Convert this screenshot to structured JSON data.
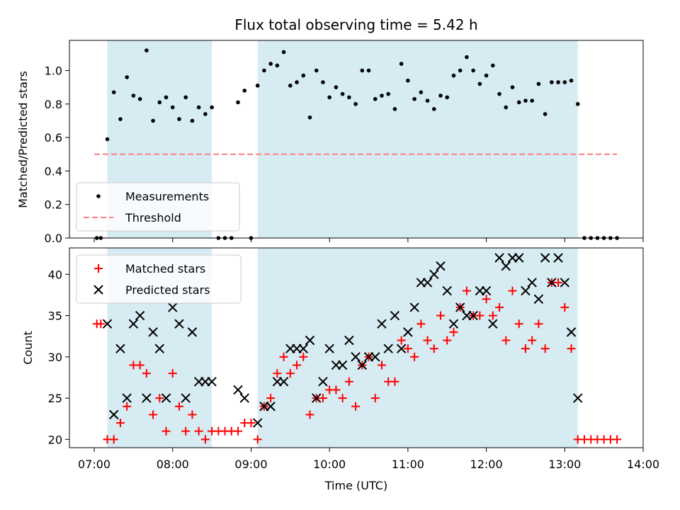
{
  "chart_data": {
    "type": "scatter",
    "title": "Flux total observing time = 5.42 h",
    "xlabel": "Time (UTC)",
    "x_ticks": [
      "07:00",
      "08:00",
      "09:00",
      "10:00",
      "11:00",
      "12:00",
      "13:00",
      "14:00"
    ],
    "xlim": [
      "06:41",
      "14:00"
    ],
    "shaded_intervals": [
      [
        "07:10",
        "08:30"
      ],
      [
        "09:05",
        "13:10"
      ]
    ],
    "shade_color": "#add8e6",
    "panels": [
      {
        "ylabel": "Matched/Predicted stars",
        "ylim": [
          0,
          1.18
        ],
        "y_ticks": [
          "0.0",
          "0.2",
          "0.4",
          "0.6",
          "0.8",
          "1.0"
        ],
        "threshold": {
          "name": "Threshold",
          "value": 0.5,
          "x_range": [
            "07:00",
            "13:40"
          ],
          "color": "#ff7f7f"
        },
        "series": [
          {
            "name": "Measurements",
            "marker": "dot",
            "color": "#000000",
            "points": [
              [
                "07:02",
                0
              ],
              [
                "07:05",
                0
              ],
              [
                "07:10",
                0.59
              ],
              [
                "07:15",
                0.87
              ],
              [
                "07:20",
                0.71
              ],
              [
                "07:25",
                0.96
              ],
              [
                "07:30",
                0.85
              ],
              [
                "07:35",
                0.83
              ],
              [
                "07:40",
                1.12
              ],
              [
                "07:45",
                0.7
              ],
              [
                "07:50",
                0.81
              ],
              [
                "07:55",
                0.84
              ],
              [
                "08:00",
                0.78
              ],
              [
                "08:05",
                0.71
              ],
              [
                "08:10",
                0.84
              ],
              [
                "08:15",
                0.7
              ],
              [
                "08:20",
                0.78
              ],
              [
                "08:25",
                0.74
              ],
              [
                "08:30",
                0.78
              ],
              [
                "08:35",
                0
              ],
              [
                "08:40",
                0
              ],
              [
                "08:45",
                0
              ],
              [
                "08:50",
                0.81
              ],
              [
                "08:55",
                0.88
              ],
              [
                "09:00",
                0
              ],
              [
                "09:05",
                0.91
              ],
              [
                "09:10",
                1.0
              ],
              [
                "09:15",
                1.04
              ],
              [
                "09:20",
                1.03
              ],
              [
                "09:25",
                1.11
              ],
              [
                "09:30",
                0.91
              ],
              [
                "09:35",
                0.93
              ],
              [
                "09:40",
                0.97
              ],
              [
                "09:45",
                0.72
              ],
              [
                "09:50",
                1.0
              ],
              [
                "09:55",
                0.93
              ],
              [
                "10:00",
                0.84
              ],
              [
                "10:05",
                0.9
              ],
              [
                "10:10",
                0.86
              ],
              [
                "10:15",
                0.84
              ],
              [
                "10:20",
                0.8
              ],
              [
                "10:25",
                1.0
              ],
              [
                "10:30",
                1.0
              ],
              [
                "10:35",
                0.83
              ],
              [
                "10:40",
                0.85
              ],
              [
                "10:45",
                0.86
              ],
              [
                "10:50",
                0.77
              ],
              [
                "10:55",
                1.04
              ],
              [
                "11:00",
                0.94
              ],
              [
                "11:05",
                0.83
              ],
              [
                "11:10",
                0.87
              ],
              [
                "11:15",
                0.82
              ],
              [
                "11:20",
                0.77
              ],
              [
                "11:25",
                0.85
              ],
              [
                "11:30",
                0.84
              ],
              [
                "11:35",
                0.97
              ],
              [
                "11:40",
                1.0
              ],
              [
                "11:45",
                1.08
              ],
              [
                "11:50",
                1.0
              ],
              [
                "11:55",
                0.92
              ],
              [
                "12:00",
                0.97
              ],
              [
                "12:05",
                1.03
              ],
              [
                "12:10",
                0.86
              ],
              [
                "12:15",
                0.78
              ],
              [
                "12:20",
                0.9
              ],
              [
                "12:25",
                0.81
              ],
              [
                "12:30",
                0.82
              ],
              [
                "12:35",
                0.82
              ],
              [
                "12:40",
                0.92
              ],
              [
                "12:45",
                0.74
              ],
              [
                "12:50",
                0.93
              ],
              [
                "12:55",
                0.93
              ],
              [
                "13:00",
                0.93
              ],
              [
                "13:05",
                0.94
              ],
              [
                "13:10",
                0.8
              ],
              [
                "13:15",
                0
              ],
              [
                "13:20",
                0
              ],
              [
                "13:25",
                0
              ],
              [
                "13:30",
                0
              ],
              [
                "13:35",
                0
              ],
              [
                "13:40",
                0
              ]
            ]
          }
        ],
        "legend": "lower-left"
      },
      {
        "ylabel": "Count",
        "ylim": [
          19,
          43.2
        ],
        "y_ticks": [
          "20",
          "25",
          "30",
          "35",
          "40"
        ],
        "series": [
          {
            "name": "Matched stars",
            "marker": "plus",
            "color": "#ff0000",
            "points": [
              [
                "07:02",
                34
              ],
              [
                "07:05",
                34
              ],
              [
                "07:10",
                20
              ],
              [
                "07:15",
                20
              ],
              [
                "07:20",
                22
              ],
              [
                "07:25",
                24
              ],
              [
                "07:30",
                29
              ],
              [
                "07:35",
                29
              ],
              [
                "07:40",
                28
              ],
              [
                "07:45",
                23
              ],
              [
                "07:50",
                25
              ],
              [
                "07:55",
                21
              ],
              [
                "08:00",
                28
              ],
              [
                "08:05",
                24
              ],
              [
                "08:10",
                21
              ],
              [
                "08:15",
                23
              ],
              [
                "08:20",
                21
              ],
              [
                "08:25",
                20
              ],
              [
                "08:30",
                21
              ],
              [
                "08:35",
                21
              ],
              [
                "08:40",
                21
              ],
              [
                "08:45",
                21
              ],
              [
                "08:50",
                21
              ],
              [
                "08:55",
                22
              ],
              [
                "09:00",
                22
              ],
              [
                "09:05",
                20
              ],
              [
                "09:10",
                24
              ],
              [
                "09:15",
                25
              ],
              [
                "09:20",
                28
              ],
              [
                "09:25",
                30
              ],
              [
                "09:30",
                28
              ],
              [
                "09:35",
                29
              ],
              [
                "09:40",
                30
              ],
              [
                "09:45",
                23
              ],
              [
                "09:50",
                25
              ],
              [
                "09:55",
                25
              ],
              [
                "10:00",
                26
              ],
              [
                "10:05",
                26
              ],
              [
                "10:10",
                25
              ],
              [
                "10:15",
                27
              ],
              [
                "10:20",
                24
              ],
              [
                "10:25",
                29
              ],
              [
                "10:30",
                30
              ],
              [
                "10:35",
                25
              ],
              [
                "10:40",
                29
              ],
              [
                "10:45",
                27
              ],
              [
                "10:50",
                27
              ],
              [
                "10:55",
                32
              ],
              [
                "11:00",
                31
              ],
              [
                "11:05",
                30
              ],
              [
                "11:10",
                34
              ],
              [
                "11:15",
                32
              ],
              [
                "11:20",
                31
              ],
              [
                "11:25",
                35
              ],
              [
                "11:30",
                32
              ],
              [
                "11:35",
                33
              ],
              [
                "11:40",
                36
              ],
              [
                "11:45",
                38
              ],
              [
                "11:50",
                35
              ],
              [
                "11:55",
                35
              ],
              [
                "12:00",
                37
              ],
              [
                "12:05",
                35
              ],
              [
                "12:10",
                36
              ],
              [
                "12:15",
                32
              ],
              [
                "12:20",
                38
              ],
              [
                "12:25",
                34
              ],
              [
                "12:30",
                31
              ],
              [
                "12:35",
                32
              ],
              [
                "12:40",
                34
              ],
              [
                "12:45",
                31
              ],
              [
                "12:50",
                39
              ],
              [
                "12:55",
                39
              ],
              [
                "13:00",
                36
              ],
              [
                "13:05",
                31
              ],
              [
                "13:10",
                20
              ],
              [
                "13:15",
                20
              ],
              [
                "13:20",
                20
              ],
              [
                "13:25",
                20
              ],
              [
                "13:30",
                20
              ],
              [
                "13:35",
                20
              ],
              [
                "13:40",
                20
              ]
            ]
          },
          {
            "name": "Predicted stars",
            "marker": "x",
            "color": "#000000",
            "points": [
              [
                "07:10",
                34
              ],
              [
                "07:15",
                23
              ],
              [
                "07:20",
                31
              ],
              [
                "07:25",
                25
              ],
              [
                "07:30",
                34
              ],
              [
                "07:35",
                35
              ],
              [
                "07:40",
                25
              ],
              [
                "07:45",
                33
              ],
              [
                "07:50",
                31
              ],
              [
                "07:55",
                25
              ],
              [
                "08:00",
                36
              ],
              [
                "08:05",
                34
              ],
              [
                "08:10",
                25
              ],
              [
                "08:15",
                33
              ],
              [
                "08:20",
                27
              ],
              [
                "08:25",
                27
              ],
              [
                "08:30",
                27
              ],
              [
                "08:50",
                26
              ],
              [
                "08:55",
                25
              ],
              [
                "09:05",
                22
              ],
              [
                "09:10",
                24
              ],
              [
                "09:15",
                24
              ],
              [
                "09:20",
                27
              ],
              [
                "09:25",
                27
              ],
              [
                "09:30",
                31
              ],
              [
                "09:35",
                31
              ],
              [
                "09:40",
                31
              ],
              [
                "09:45",
                32
              ],
              [
                "09:50",
                25
              ],
              [
                "09:55",
                27
              ],
              [
                "10:00",
                31
              ],
              [
                "10:05",
                29
              ],
              [
                "10:10",
                29
              ],
              [
                "10:15",
                32
              ],
              [
                "10:20",
                30
              ],
              [
                "10:25",
                29
              ],
              [
                "10:30",
                30
              ],
              [
                "10:35",
                30
              ],
              [
                "10:40",
                34
              ],
              [
                "10:45",
                31
              ],
              [
                "10:50",
                35
              ],
              [
                "10:55",
                31
              ],
              [
                "11:00",
                33
              ],
              [
                "11:05",
                36
              ],
              [
                "11:10",
                39
              ],
              [
                "11:15",
                39
              ],
              [
                "11:20",
                40
              ],
              [
                "11:25",
                41
              ],
              [
                "11:30",
                38
              ],
              [
                "11:35",
                34
              ],
              [
                "11:40",
                36
              ],
              [
                "11:45",
                35
              ],
              [
                "11:50",
                35
              ],
              [
                "11:55",
                38
              ],
              [
                "12:00",
                38
              ],
              [
                "12:05",
                34
              ],
              [
                "12:10",
                42
              ],
              [
                "12:15",
                41
              ],
              [
                "12:20",
                42
              ],
              [
                "12:25",
                42
              ],
              [
                "12:30",
                38
              ],
              [
                "12:35",
                39
              ],
              [
                "12:40",
                37
              ],
              [
                "12:45",
                42
              ],
              [
                "12:50",
                39
              ],
              [
                "12:55",
                42
              ],
              [
                "13:00",
                39
              ],
              [
                "13:05",
                33
              ],
              [
                "13:10",
                25
              ]
            ]
          }
        ],
        "legend": "upper-left"
      }
    ]
  }
}
